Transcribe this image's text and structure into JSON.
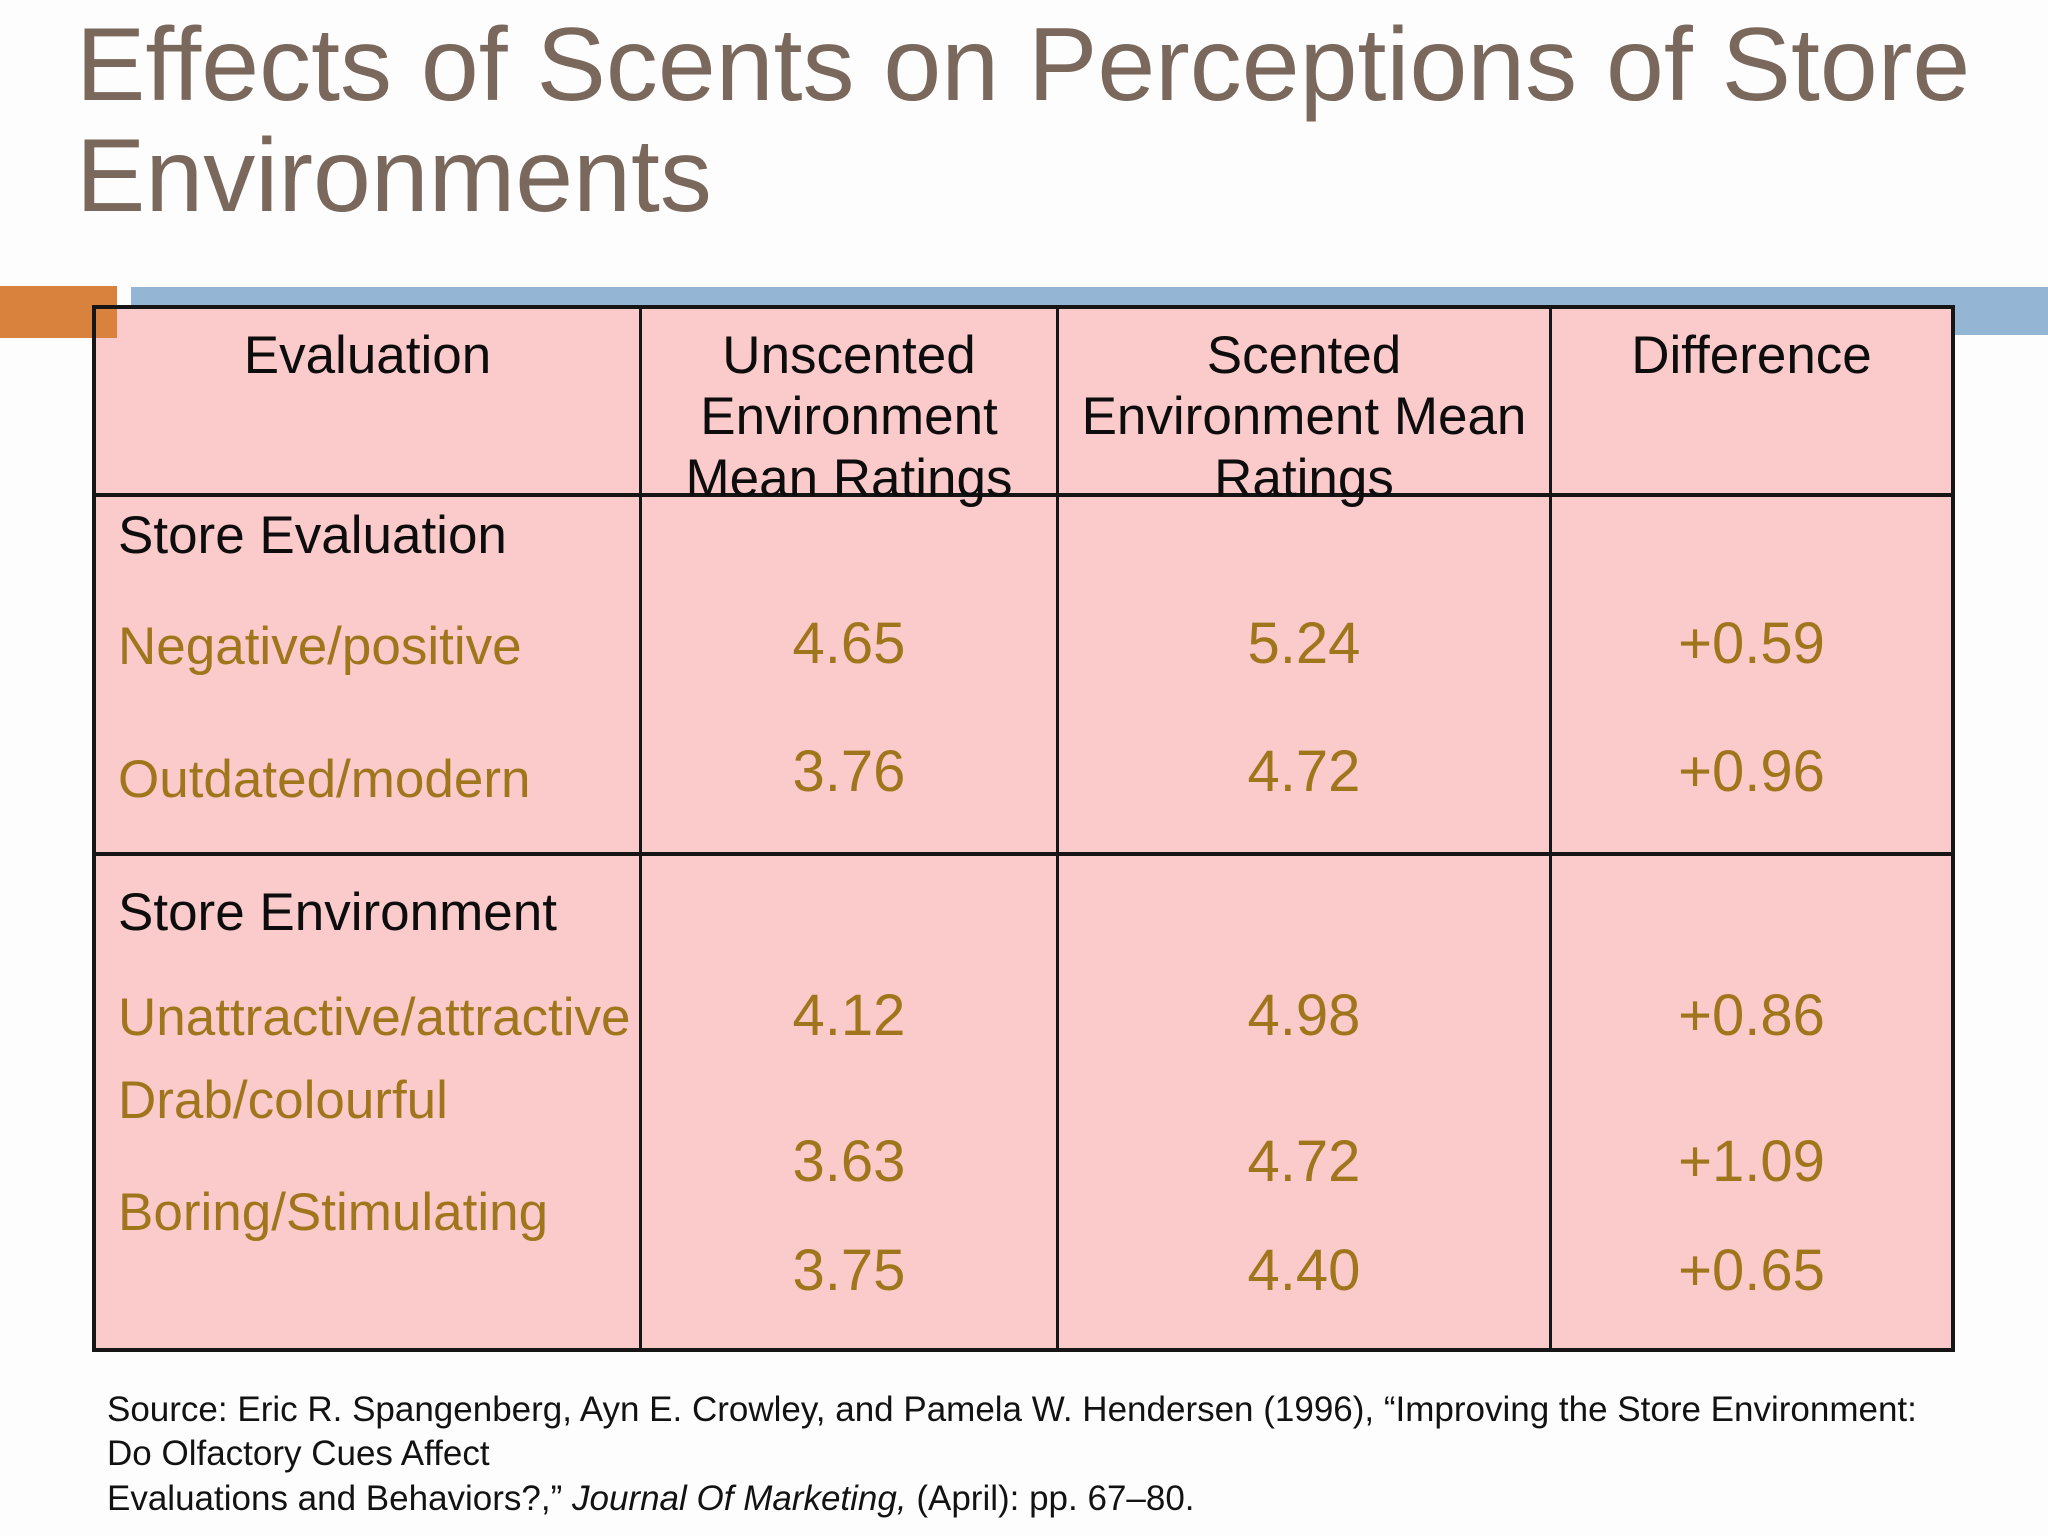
{
  "slide": {
    "title": "Effects of Scents on Perceptions of Store Environments",
    "colors": {
      "title_text": "#7b685c",
      "accent_orange": "#d8823e",
      "accent_blue": "#94b5d3",
      "table_pink": "#fbcaca",
      "data_gold": "#a0761d",
      "border_black": "#161616"
    }
  },
  "table": {
    "headers": [
      "Evaluation",
      "Unscented Environment Mean Ratings",
      "Scented Environment Mean Ratings",
      "Difference"
    ],
    "sections": [
      {
        "title": "Store Evaluation",
        "rows": [
          {
            "label": "Negative/positive",
            "unscented": "4.65",
            "scented": "5.24",
            "difference": "+0.59"
          },
          {
            "label": "Outdated/modern",
            "unscented": "3.76",
            "scented": "4.72",
            "difference": "+0.96"
          }
        ]
      },
      {
        "title": "Store Environment",
        "rows": [
          {
            "label": "Unattractive/attractive",
            "unscented": "4.12",
            "scented": "4.98",
            "difference": "+0.86"
          },
          {
            "label": "Drab/colourful",
            "unscented": "3.63",
            "scented": "4.72",
            "difference": "+1.09"
          },
          {
            "label": "Boring/Stimulating",
            "unscented": "3.75",
            "scented": "4.40",
            "difference": "+0.65"
          }
        ]
      }
    ]
  },
  "source": {
    "line1": "Source: Eric R. Spangenberg, Ayn E. Crowley, and Pamela W. Hendersen (1996), “Improving the Store Environment: Do Olfactory Cues Affect",
    "line2_prefix": "Evaluations and Behaviors?,” ",
    "line2_italic": "Journal Of Marketing,",
    "line2_suffix": " (April): pp. 67–80."
  }
}
